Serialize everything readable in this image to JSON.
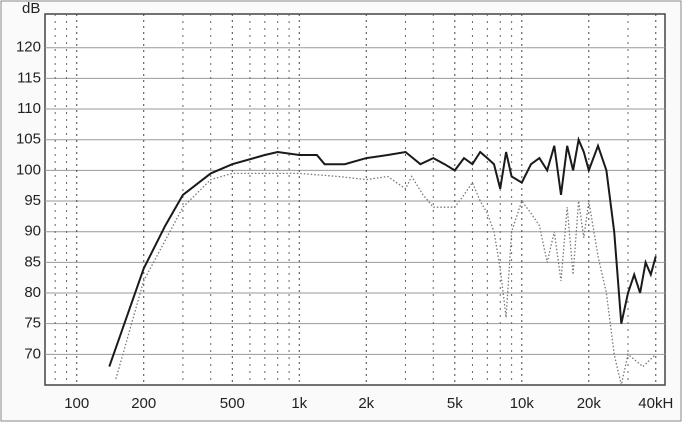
{
  "chart_data": {
    "type": "line",
    "y_label": "dB",
    "log_x": true,
    "xlim": [
      72,
      44000
    ],
    "ylim": [
      65,
      125.5
    ],
    "xticks": [
      100,
      200,
      500,
      {
        "value": 1000,
        "label": "1k"
      },
      {
        "value": 2000,
        "label": "2k"
      },
      {
        "value": 5000,
        "label": "5k"
      },
      {
        "value": 10000,
        "label": "10k"
      },
      {
        "value": 20000,
        "label": "20k"
      },
      {
        "value": 40000,
        "label": "40kH"
      }
    ],
    "xgrid_minor": [
      80,
      90,
      300,
      400,
      600,
      700,
      800,
      900,
      3000,
      4000,
      6000,
      7000,
      8000,
      9000,
      30000
    ],
    "yticks": [
      70,
      75,
      80,
      85,
      90,
      95,
      100,
      105,
      110,
      115,
      120
    ],
    "grid": true,
    "series": [
      {
        "color": "#1a1a1a",
        "style": "solid",
        "x": [
          140,
          160,
          200,
          250,
          300,
          400,
          500,
          700,
          800,
          1000,
          1200,
          1300,
          1600,
          2000,
          2500,
          3000,
          3500,
          4000,
          4500,
          5000,
          5500,
          6000,
          6500,
          7000,
          7500,
          8000,
          8500,
          9000,
          10000,
          11000,
          12000,
          13000,
          14000,
          15000,
          16000,
          17000,
          18000,
          19000,
          20000,
          22000,
          24000,
          26000,
          28000,
          30000,
          32000,
          34000,
          36000,
          38000,
          40000
        ],
        "values": [
          68,
          74,
          84,
          91,
          96,
          99.5,
          101,
          102.5,
          103,
          102.5,
          102.5,
          101,
          101,
          102,
          102.5,
          103,
          101,
          102,
          101,
          100,
          102,
          101,
          103,
          102,
          101,
          97,
          103,
          99,
          98,
          101,
          102,
          100,
          104,
          96,
          104,
          100,
          105,
          103,
          100,
          104,
          100,
          90,
          75,
          80,
          83,
          80,
          85,
          83,
          86
        ]
      },
      {
        "color": "#777777",
        "style": "dotted",
        "x": [
          150,
          200,
          300,
          400,
          500,
          1000,
          1500,
          2000,
          2500,
          3000,
          3200,
          3600,
          4000,
          4500,
          5000,
          5500,
          6000,
          6500,
          7000,
          7500,
          8000,
          8500,
          9000,
          10000,
          11000,
          12000,
          13000,
          14000,
          15000,
          16000,
          17000,
          18000,
          19000,
          20000,
          22000,
          24000,
          26000,
          28000,
          30000,
          35000,
          40000
        ],
        "values": [
          66,
          82,
          94,
          98.5,
          99.5,
          99.5,
          99,
          98.5,
          99,
          97,
          99,
          96,
          94,
          94,
          94,
          96,
          98,
          95,
          93,
          90,
          84,
          76,
          90,
          95,
          93,
          91,
          85,
          90,
          82,
          94,
          83,
          95,
          89,
          95,
          86,
          80,
          70,
          65,
          70,
          68,
          70
        ]
      }
    ]
  }
}
